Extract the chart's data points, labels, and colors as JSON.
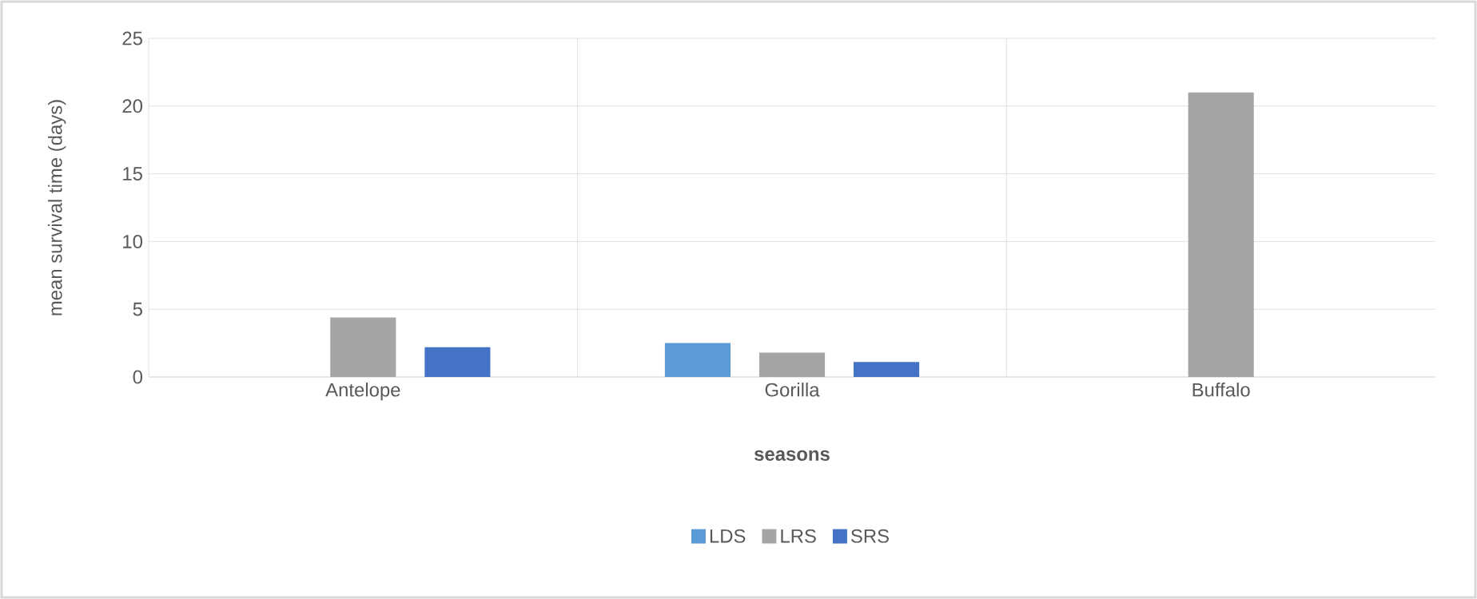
{
  "chart_data": {
    "type": "bar",
    "xlabel": "seasons",
    "ylabel": "mean survival time (days)",
    "categories": [
      "Antelope",
      "Gorilla",
      "Buffalo"
    ],
    "series": [
      {
        "name": "LDS",
        "color": "#5b9bd5",
        "values": [
          null,
          2.5,
          null
        ]
      },
      {
        "name": "LRS",
        "color": "#a5a5a5",
        "values": [
          4.4,
          1.8,
          21.0
        ]
      },
      {
        "name": "SRS",
        "color": "#4472c4",
        "values": [
          2.2,
          1.1,
          null
        ]
      }
    ],
    "ylim": [
      0,
      25
    ],
    "yticks": [
      0,
      5,
      10,
      15,
      20,
      25
    ],
    "grid": true,
    "legend": "bottom"
  }
}
